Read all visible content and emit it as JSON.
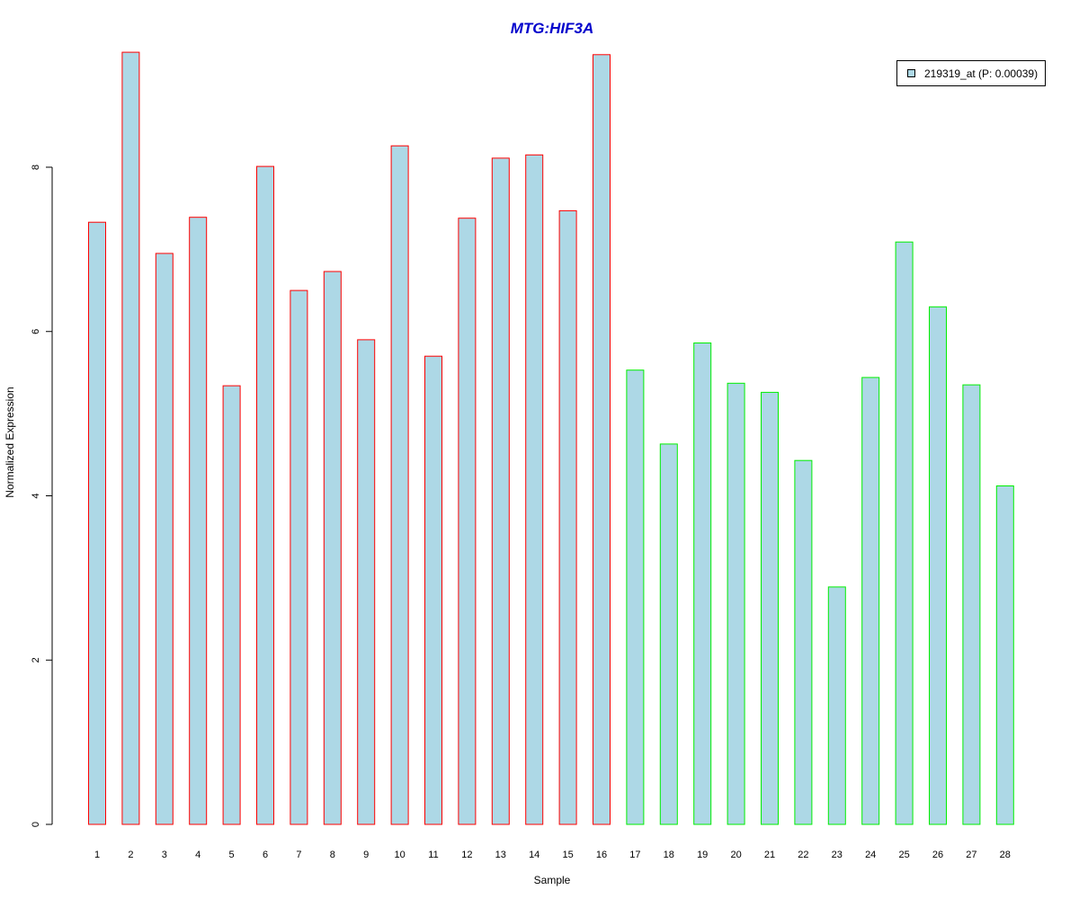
{
  "chart_data": {
    "type": "bar",
    "title": "MTG:HIF3A",
    "xlabel": "Sample",
    "ylabel": "Normalized Expression",
    "categories": [
      "1",
      "2",
      "3",
      "4",
      "5",
      "6",
      "7",
      "8",
      "9",
      "10",
      "11",
      "12",
      "13",
      "14",
      "15",
      "16",
      "17",
      "18",
      "19",
      "20",
      "21",
      "22",
      "23",
      "24",
      "25",
      "26",
      "27",
      "28"
    ],
    "series": [
      {
        "name": "219319_at (P: 0.00039)",
        "values": [
          7.33,
          9.4,
          6.95,
          7.39,
          5.34,
          8.01,
          6.5,
          6.73,
          5.9,
          8.26,
          5.7,
          7.38,
          8.11,
          8.15,
          7.47,
          9.37,
          5.53,
          4.63,
          5.86,
          5.37,
          5.26,
          4.43,
          2.89,
          5.44,
          7.09,
          6.3,
          5.35,
          4.12
        ]
      }
    ],
    "group_colors": [
      "#ff0000",
      "#ff0000",
      "#ff0000",
      "#ff0000",
      "#ff0000",
      "#ff0000",
      "#ff0000",
      "#ff0000",
      "#ff0000",
      "#ff0000",
      "#ff0000",
      "#ff0000",
      "#ff0000",
      "#ff0000",
      "#ff0000",
      "#ff0000",
      "#00ee00",
      "#00ee00",
      "#00ee00",
      "#00ee00",
      "#00ee00",
      "#00ee00",
      "#00ee00",
      "#00ee00",
      "#00ee00",
      "#00ee00",
      "#00ee00",
      "#00ee00"
    ],
    "fill_color": "#add8e6",
    "title_color": "#0000cc",
    "yticks": [
      0,
      2,
      4,
      6,
      8
    ],
    "ylim": [
      0,
      9.5
    ],
    "legend_position": "top-right",
    "grid": false
  }
}
